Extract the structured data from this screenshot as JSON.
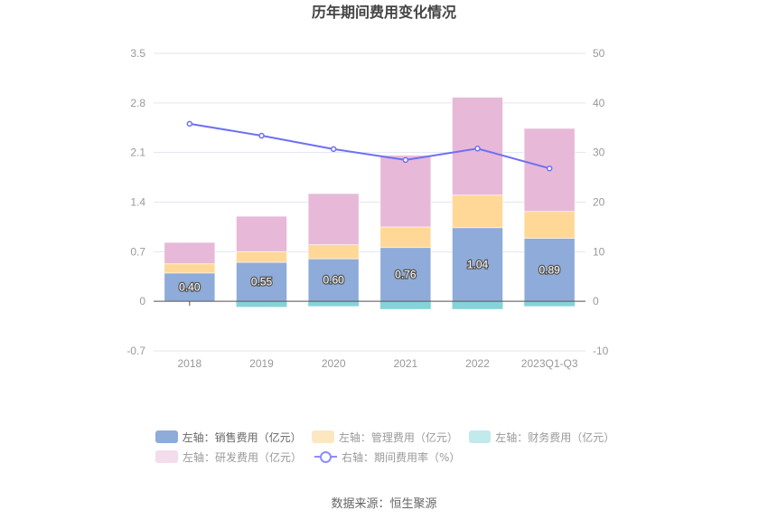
{
  "chart_data": {
    "type": "bar",
    "title": "历年期间费用变化情况",
    "categories": [
      "2018",
      "2019",
      "2020",
      "2021",
      "2022",
      "2023Q1-Q3"
    ],
    "left_axis": {
      "ylim": [
        -0.7,
        3.5
      ],
      "ticks": [
        "3.5",
        "2.8",
        "2.1",
        "1.4",
        "0.7",
        "0",
        "-0.7"
      ],
      "tick_values": [
        3.5,
        2.8,
        2.1,
        1.4,
        0.7,
        0,
        -0.7
      ]
    },
    "right_axis": {
      "ylim": [
        -10,
        50
      ],
      "ticks": [
        "50",
        "40",
        "30",
        "20",
        "10",
        "0",
        "-10"
      ],
      "tick_values": [
        50,
        40,
        30,
        20,
        10,
        0,
        -10
      ]
    },
    "grid": true,
    "series": [
      {
        "name": "左轴：销售费用（亿元）",
        "type": "bar",
        "axis": "left",
        "color": "#8eabd9",
        "values": [
          0.4,
          0.55,
          0.6,
          0.76,
          1.04,
          0.89
        ],
        "labels": [
          "0.40",
          "0.55",
          "0.60",
          "0.76",
          "1.04",
          "0.89"
        ]
      },
      {
        "name": "左轴：管理费用（亿元）",
        "type": "bar",
        "axis": "left",
        "color": "#ffd897",
        "legend_color": "#fde7c2",
        "values": [
          0.13,
          0.15,
          0.2,
          0.29,
          0.46,
          0.38
        ]
      },
      {
        "name": "左轴：财务费用（亿元）",
        "type": "bar",
        "axis": "left",
        "color": "#85d3d8",
        "legend_color": "#c2e9ec",
        "values": [
          0.0,
          -0.08,
          -0.07,
          -0.11,
          -0.11,
          -0.07
        ]
      },
      {
        "name": "左轴：研发费用（亿元）",
        "type": "bar",
        "axis": "left",
        "color": "#e7b8d8",
        "legend_color": "#f3dceb",
        "values": [
          0.3,
          0.5,
          0.72,
          1.01,
          1.38,
          1.17
        ]
      },
      {
        "name": "右轴：期间费用率（%）",
        "type": "line",
        "axis": "right",
        "color": "#6f6ff4",
        "values": [
          35.8,
          33.4,
          30.7,
          28.5,
          30.8,
          26.8
        ]
      }
    ],
    "legend_position": "bottom"
  },
  "source": "数据来源：恒生聚源"
}
